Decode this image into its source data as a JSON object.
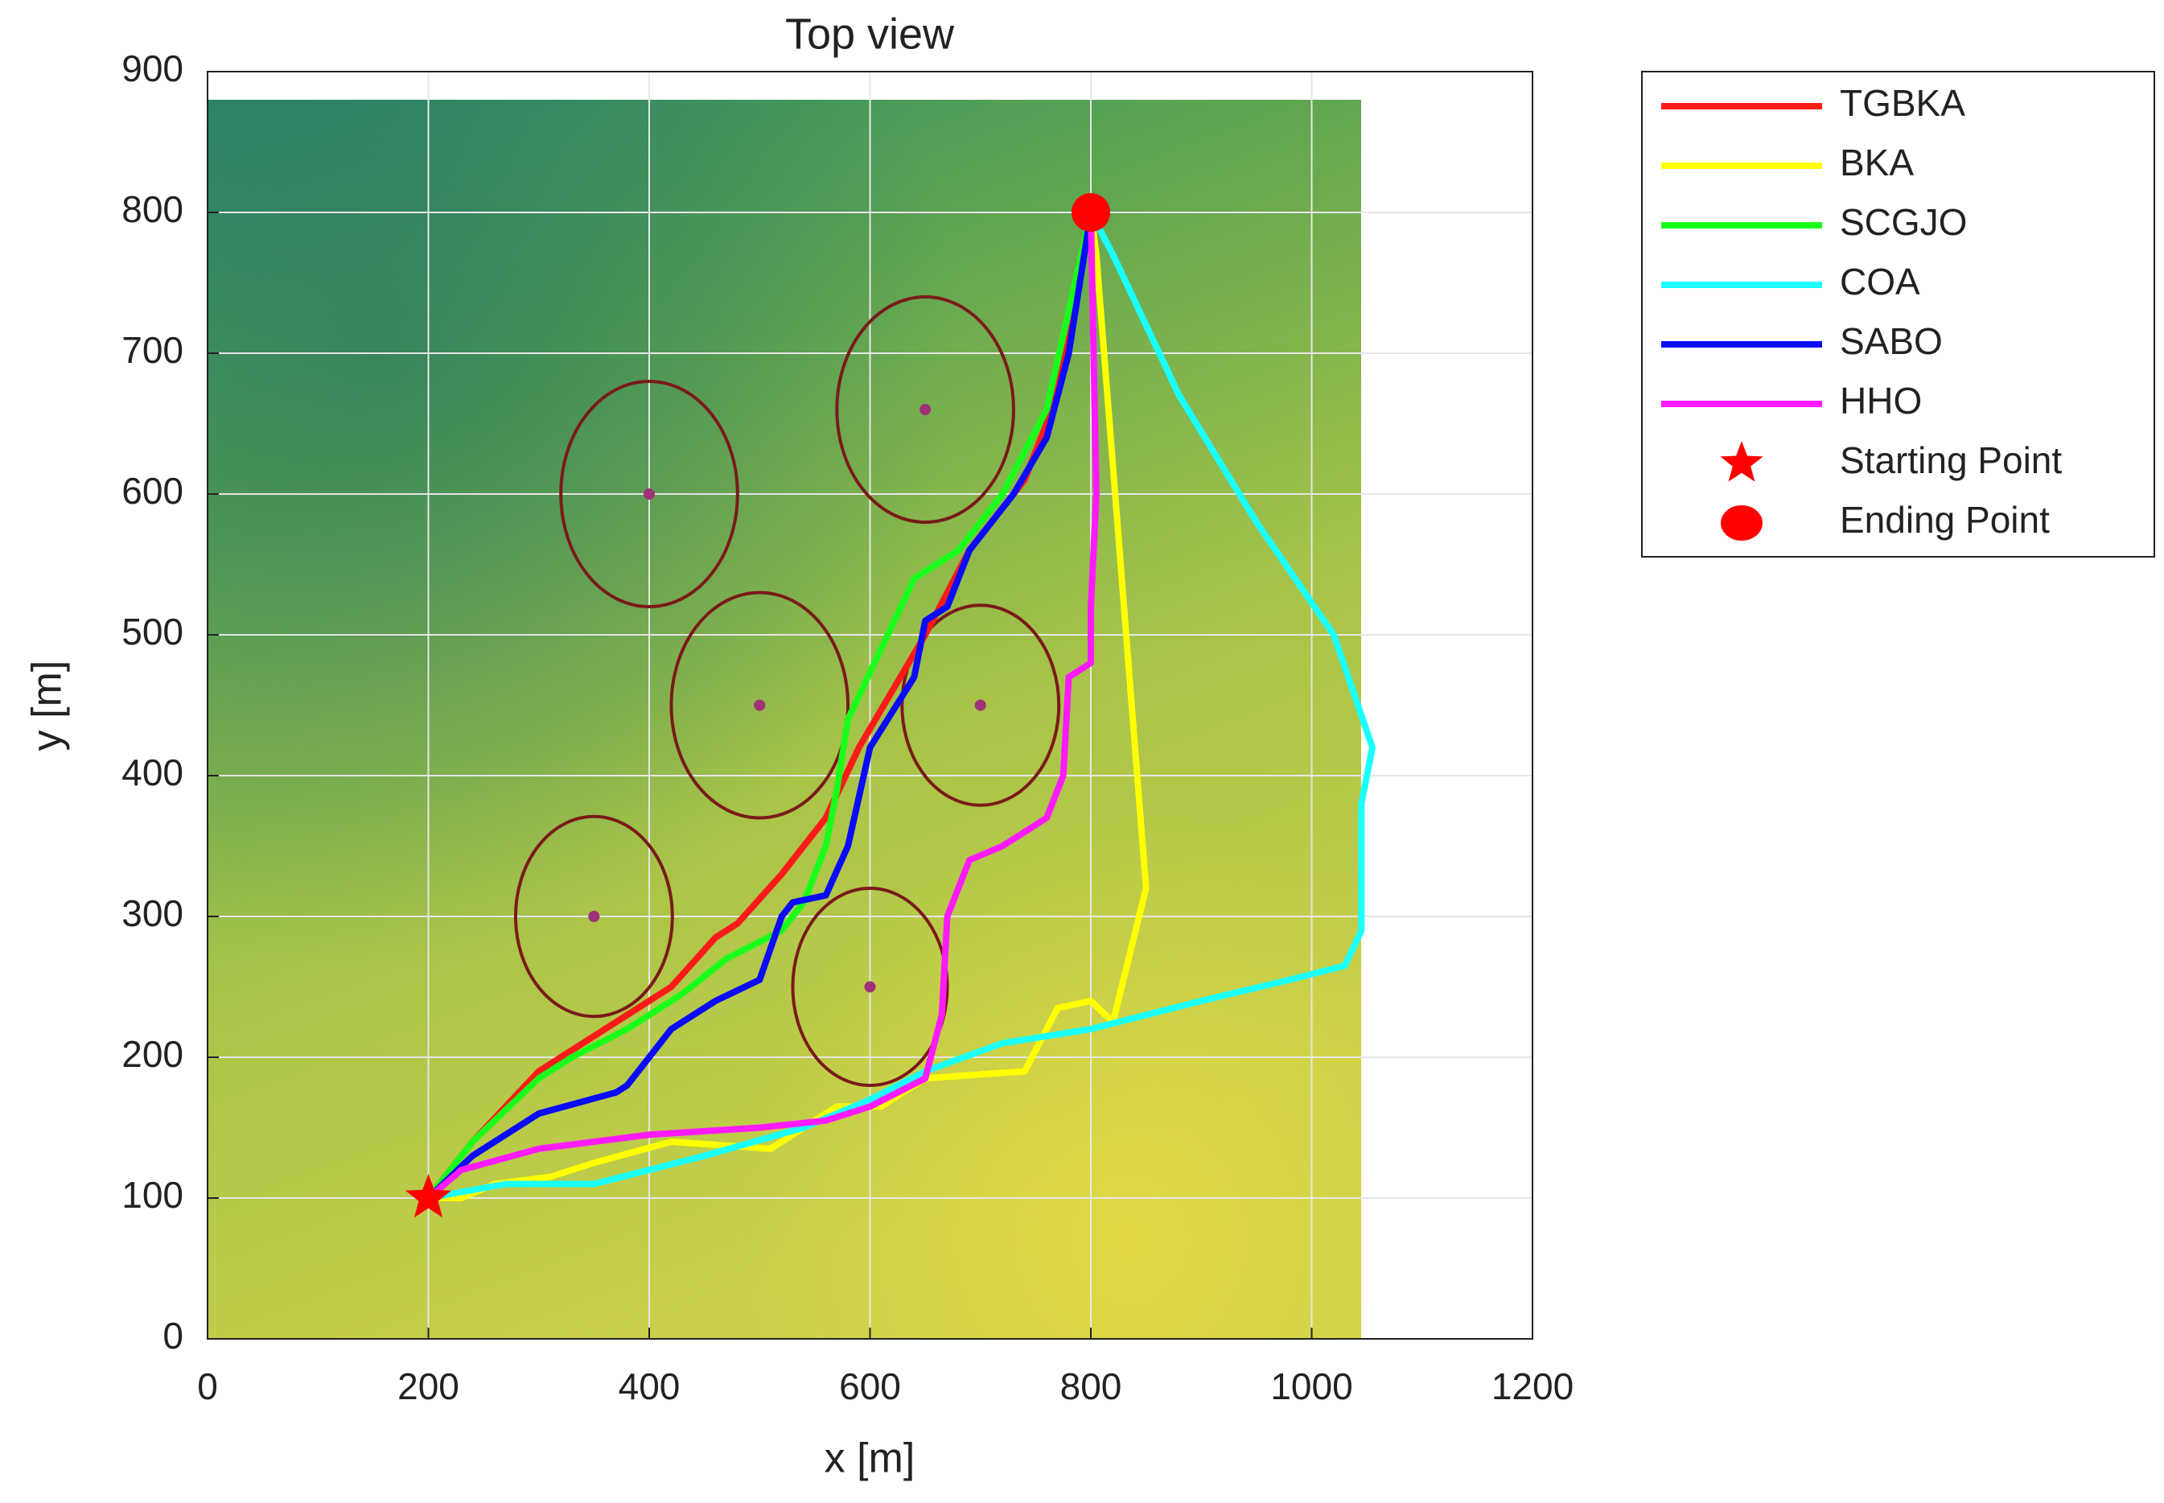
{
  "chart_data": {
    "type": "line",
    "title": "Top view",
    "x_label": "x [m]",
    "y_label": "y [m]",
    "xlim": [
      0,
      1200
    ],
    "xticks": [
      0,
      200,
      400,
      600,
      800,
      1000,
      1200
    ],
    "ylim": [
      0,
      900
    ],
    "yticks": [
      0,
      100,
      200,
      300,
      400,
      500,
      600,
      700,
      800,
      900
    ],
    "grid": true,
    "obstacles": [
      {
        "x": 400,
        "y": 600,
        "r": 80
      },
      {
        "x": 650,
        "y": 660,
        "r": 80
      },
      {
        "x": 500,
        "y": 450,
        "r": 80
      },
      {
        "x": 700,
        "y": 450,
        "r": 71
      },
      {
        "x": 350,
        "y": 300,
        "r": 71
      },
      {
        "x": 600,
        "y": 250,
        "r": 70
      }
    ],
    "series": [
      {
        "name": "TGBKA",
        "color": "#ff1a1a",
        "x": [
          200,
          240,
          300,
          350,
          420,
          460,
          480,
          520,
          560,
          590,
          620,
          650,
          690,
          720,
          740,
          760,
          780,
          800
        ],
        "values": [
          100,
          140,
          190,
          215,
          250,
          285,
          295,
          330,
          370,
          420,
          460,
          500,
          560,
          590,
          610,
          650,
          720,
          800
        ]
      },
      {
        "name": "BKA",
        "color": "#ffff00",
        "x": [
          200,
          230,
          260,
          310,
          350,
          420,
          510,
          570,
          610,
          650,
          740,
          770,
          800,
          820,
          850,
          805,
          800
        ],
        "values": [
          100,
          100,
          110,
          115,
          125,
          140,
          135,
          165,
          165,
          185,
          190,
          235,
          240,
          225,
          320,
          770,
          800
        ]
      },
      {
        "name": "SCGJO",
        "color": "#1aff1a",
        "x": [
          200,
          240,
          300,
          330,
          380,
          430,
          470,
          520,
          540,
          560,
          570,
          580,
          610,
          640,
          680,
          720,
          760,
          780,
          800
        ],
        "values": [
          100,
          140,
          185,
          200,
          220,
          245,
          270,
          290,
          310,
          350,
          390,
          440,
          490,
          540,
          560,
          600,
          660,
          730,
          800
        ]
      },
      {
        "name": "COA",
        "color": "#1affff",
        "x": [
          200,
          270,
          350,
          450,
          540,
          600,
          650,
          720,
          800,
          900,
          980,
          1030,
          1045,
          1045,
          1055,
          1020,
          950,
          880,
          820,
          800
        ],
        "values": [
          100,
          110,
          110,
          130,
          150,
          170,
          190,
          210,
          220,
          240,
          255,
          265,
          290,
          380,
          420,
          500,
          580,
          670,
          770,
          800
        ]
      },
      {
        "name": "SABO",
        "color": "#0a0aff",
        "x": [
          200,
          240,
          300,
          370,
          380,
          420,
          460,
          500,
          520,
          530,
          560,
          580,
          600,
          640,
          650,
          670,
          690,
          730,
          760,
          780,
          800
        ],
        "values": [
          100,
          130,
          160,
          175,
          180,
          220,
          240,
          255,
          300,
          310,
          315,
          350,
          420,
          470,
          510,
          520,
          560,
          600,
          640,
          700,
          800
        ]
      },
      {
        "name": "HHO",
        "color": "#ff1aff",
        "x": [
          200,
          230,
          300,
          400,
          500,
          560,
          600,
          650,
          665,
          670,
          690,
          720,
          760,
          775,
          780,
          800,
          800,
          805,
          800
        ],
        "values": [
          100,
          120,
          135,
          145,
          150,
          155,
          165,
          185,
          230,
          300,
          340,
          350,
          370,
          400,
          470,
          480,
          520,
          600,
          800
        ]
      }
    ],
    "start": {
      "name": "Starting Point",
      "x": 200,
      "y": 100,
      "color": "#ff0000"
    },
    "end": {
      "name": "Ending Point",
      "x": 800,
      "y": 800,
      "color": "#ff0000"
    }
  }
}
